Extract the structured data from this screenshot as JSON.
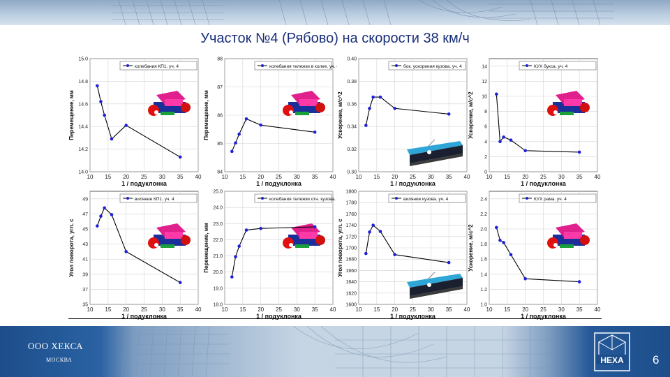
{
  "slide": {
    "title": "Участок №4 (Рябово) на скорости 38 км/ч",
    "company": "ООО ХЕКСА",
    "city": "МОСКВА",
    "logo_text": "HEXA",
    "page_number": "6"
  },
  "colors": {
    "series_line": "#000000",
    "series_marker": "#1f1fd8",
    "title": "#1a2f7a",
    "footer": "#1d4e8a"
  },
  "chart_data": [
    {
      "type": "line",
      "id": "c1",
      "legend": "колебания КП1. уч. 4",
      "ylabel": "Перемещение, мм",
      "xlabel": "1 / подуклонка",
      "xlim": [
        10,
        40
      ],
      "ylim": [
        14.0,
        15.0
      ],
      "xticks": [
        "10",
        "15",
        "20",
        "25",
        "30",
        "35",
        "40"
      ],
      "yticks": [
        "14.0",
        "14.2",
        "14.4",
        "14.6",
        "14.8",
        "15.0"
      ],
      "x": [
        12,
        13,
        14,
        16,
        20,
        35
      ],
      "y": [
        14.76,
        14.62,
        14.5,
        14.29,
        14.41,
        14.13
      ],
      "image": "bogie"
    },
    {
      "type": "line",
      "id": "c2",
      "legend": "колебания тележки в колее. уч. 4",
      "ylabel": "Перемещение, мм",
      "xlabel": "1 / подуклонка",
      "xlim": [
        10,
        40
      ],
      "ylim": [
        84,
        88
      ],
      "xticks": [
        "10",
        "15",
        "20",
        "25",
        "30",
        "35",
        "40"
      ],
      "yticks": [
        "84",
        "85",
        "86",
        "87",
        "88"
      ],
      "x": [
        12,
        13,
        14,
        16,
        20,
        35
      ],
      "y": [
        84.72,
        85.02,
        85.33,
        85.87,
        85.65,
        85.4
      ],
      "image": "bogie"
    },
    {
      "type": "line",
      "id": "c3",
      "legend": "бок. ускорения кузова. уч. 4",
      "ylabel": "Ускорение, м/с^2",
      "xlabel": "1 / подуклонка",
      "xlim": [
        10,
        40
      ],
      "ylim": [
        0.3,
        0.4
      ],
      "xticks": [
        "10",
        "15",
        "20",
        "25",
        "30",
        "35",
        "40"
      ],
      "yticks": [
        "0.30",
        "0.32",
        "0.34",
        "0.36",
        "0.38",
        "0.40"
      ],
      "x": [
        12,
        13,
        14,
        16,
        20,
        35
      ],
      "y": [
        0.341,
        0.356,
        0.366,
        0.366,
        0.356,
        0.351
      ],
      "image": "car"
    },
    {
      "type": "line",
      "id": "c4",
      "legend": "КУХ букса. уч. 4",
      "ylabel": "Ускорение, м/с^2",
      "xlabel": "1 / подуклонка",
      "xlim": [
        10,
        40
      ],
      "ylim": [
        0,
        15
      ],
      "xticks": [
        "10",
        "15",
        "20",
        "25",
        "30",
        "35",
        "40"
      ],
      "yticks": [
        "0",
        "2",
        "4",
        "6",
        "8",
        "10",
        "12",
        "14"
      ],
      "x": [
        12,
        13,
        14,
        16,
        20,
        35
      ],
      "y": [
        10.3,
        4.0,
        4.6,
        4.2,
        2.8,
        2.6
      ],
      "image": "bogie"
    },
    {
      "type": "line",
      "id": "c5",
      "legend": "виляние КП1. уч. 4",
      "ylabel": "Угол поворота, угл. с",
      "xlabel": "1 / подуклонка",
      "xlim": [
        10,
        40
      ],
      "ylim": [
        35,
        50
      ],
      "xticks": [
        "10",
        "15",
        "20",
        "25",
        "30",
        "35",
        "40"
      ],
      "yticks": [
        "35",
        "37",
        "39",
        "41",
        "43",
        "45",
        "47",
        "49"
      ],
      "x": [
        12,
        13,
        14,
        16,
        20,
        35
      ],
      "y": [
        45.4,
        46.7,
        47.8,
        46.9,
        42.0,
        37.9
      ],
      "image": "bogie"
    },
    {
      "type": "line",
      "id": "c6",
      "legend": "колебания тележки отн. кузова. уч. 4",
      "ylabel": "Перемещение, мм",
      "xlabel": "1 / подуклонка",
      "xlim": [
        10,
        40
      ],
      "ylim": [
        18.0,
        25.0
      ],
      "xticks": [
        "10",
        "15",
        "20",
        "25",
        "30",
        "35",
        "40"
      ],
      "yticks": [
        "18.0",
        "19.0",
        "20.0",
        "21.0",
        "22.0",
        "23.0",
        "24.0",
        "25.0"
      ],
      "x": [
        12,
        13,
        14,
        16,
        20,
        35
      ],
      "y": [
        19.7,
        20.95,
        21.6,
        22.6,
        22.7,
        22.8
      ],
      "image": "bogie"
    },
    {
      "type": "line",
      "id": "c7",
      "legend": "виляние кузова. уч. 4",
      "ylabel": "Угол поворота, угл. с",
      "xlabel": "1 / подуклонка",
      "xlim": [
        10,
        40
      ],
      "ylim": [
        1600,
        1800
      ],
      "xticks": [
        "10",
        "15",
        "20",
        "25",
        "30",
        "35",
        "40"
      ],
      "yticks": [
        "1600",
        "1620",
        "1640",
        "1660",
        "1680",
        "1700",
        "1720",
        "1740",
        "1760",
        "1780",
        "1800"
      ],
      "x": [
        12,
        13,
        14,
        16,
        20,
        35
      ],
      "y": [
        1690,
        1728,
        1740,
        1729,
        1688,
        1674
      ],
      "image": "car"
    },
    {
      "type": "line",
      "id": "c8",
      "legend": "КУХ рама. уч. 4",
      "ylabel": "Ускорение, м/с^2",
      "xlabel": "1 / подуклонка",
      "xlim": [
        10,
        40
      ],
      "ylim": [
        1.0,
        2.5
      ],
      "xticks": [
        "10",
        "15",
        "20",
        "25",
        "30",
        "35",
        "40"
      ],
      "yticks": [
        "1.0",
        "1.2",
        "1.4",
        "1.6",
        "1.8",
        "2.0",
        "2.2",
        "2.4"
      ],
      "x": [
        12,
        13,
        14,
        16,
        20,
        35
      ],
      "y": [
        2.02,
        1.85,
        1.82,
        1.66,
        1.34,
        1.3
      ],
      "image": "bogie"
    }
  ]
}
